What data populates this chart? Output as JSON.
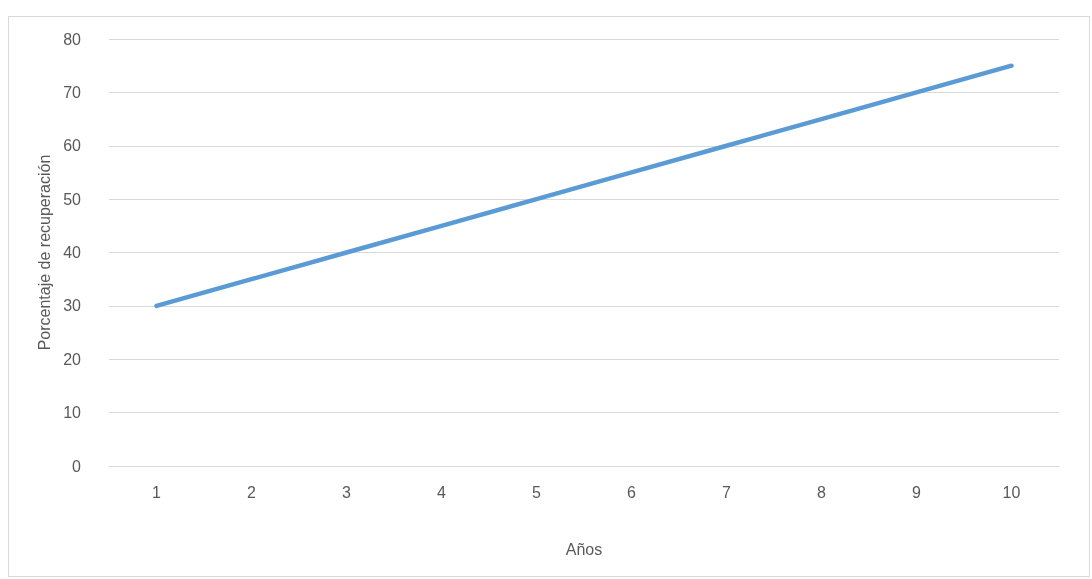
{
  "chart_data": {
    "type": "line",
    "xlabel": "Años",
    "ylabel": "Porcentaje de recuperación",
    "categories": [
      "1",
      "2",
      "3",
      "4",
      "5",
      "6",
      "7",
      "8",
      "9",
      "10"
    ],
    "series": [
      {
        "color": "#5b9bd5",
        "values": [
          30,
          35,
          40,
          45,
          50,
          55,
          60,
          65,
          70,
          75
        ]
      }
    ],
    "ylim": [
      0,
      80
    ],
    "yticks": [
      0,
      10,
      20,
      30,
      40,
      50,
      60,
      70,
      80
    ],
    "grid": "y",
    "marker": "none",
    "line_style": "solid"
  }
}
